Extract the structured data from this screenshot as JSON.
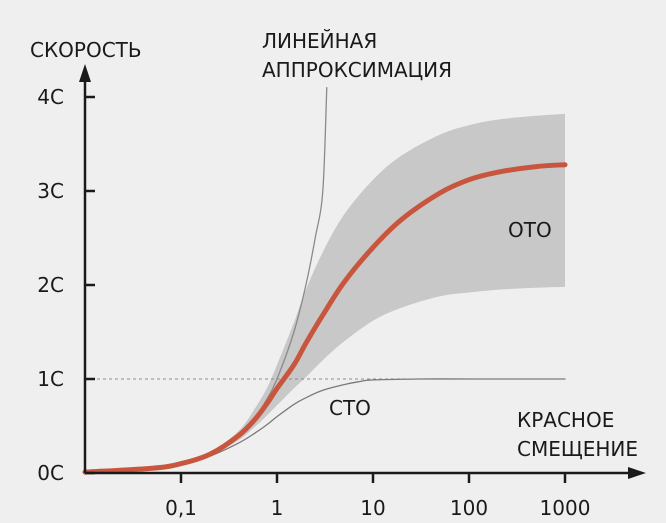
{
  "chart_data": {
    "type": "line",
    "ylabel": "СКОРОСТЬ",
    "xlabel": [
      "КРАСНОЕ",
      "СМЕЩЕНИЕ"
    ],
    "x_scale": "log",
    "xlim": [
      0.01,
      1000
    ],
    "ylim": [
      0,
      4
    ],
    "x_ticks": [
      0.1,
      1,
      10,
      100,
      1000
    ],
    "x_tick_labels": [
      "0,1",
      "1",
      "10",
      "100",
      "1000"
    ],
    "y_ticks": [
      0,
      1,
      2,
      3,
      4
    ],
    "y_tick_labels": [
      "0С",
      "1С",
      "2С",
      "3С",
      "4С"
    ],
    "reference_line": {
      "y": 1,
      "style": "dashed"
    },
    "series": [
      {
        "name": "ЛИНЕЙНАЯ АППРОКСИМАЦИЯ",
        "label_lines": [
          "ЛИНЕЙНАЯ",
          "АППРОКСИМАЦИЯ"
        ],
        "color": "#8a8a8a",
        "x": [
          0.01,
          0.05,
          0.1,
          0.2,
          0.4,
          0.6,
          0.8,
          1,
          1.5,
          2,
          2.5,
          3,
          3.3
        ],
        "y": [
          0.01,
          0.05,
          0.1,
          0.2,
          0.4,
          0.6,
          0.8,
          1.0,
          1.5,
          2.0,
          2.5,
          3.0,
          4.1
        ]
      },
      {
        "name": "СТО",
        "color": "#7a7a7a",
        "x": [
          0.01,
          0.05,
          0.1,
          0.2,
          0.4,
          0.6,
          0.8,
          1,
          1.5,
          2,
          3,
          5,
          7,
          10,
          30,
          100,
          1000
        ],
        "y": [
          0.01,
          0.05,
          0.1,
          0.18,
          0.32,
          0.43,
          0.52,
          0.6,
          0.73,
          0.8,
          0.88,
          0.94,
          0.97,
          0.99,
          1.0,
          1.0,
          1.0
        ]
      },
      {
        "name": "ОТО",
        "color": "#c8563f",
        "x": [
          0.01,
          0.05,
          0.1,
          0.2,
          0.4,
          0.6,
          0.8,
          1,
          1.5,
          2,
          3,
          5,
          10,
          20,
          50,
          100,
          200,
          500,
          1000
        ],
        "y": [
          0.01,
          0.05,
          0.1,
          0.2,
          0.4,
          0.58,
          0.75,
          0.9,
          1.15,
          1.38,
          1.68,
          2.03,
          2.4,
          2.7,
          2.98,
          3.12,
          3.2,
          3.26,
          3.28
        ]
      }
    ],
    "band": {
      "color": "#c8c8c8",
      "x": [
        0.01,
        0.05,
        0.1,
        0.2,
        0.4,
        0.6,
        0.8,
        1,
        1.5,
        2,
        3,
        5,
        10,
        20,
        50,
        100,
        200,
        500,
        1000
      ],
      "upper": [
        0.01,
        0.05,
        0.1,
        0.22,
        0.45,
        0.7,
        0.92,
        1.15,
        1.6,
        1.95,
        2.35,
        2.75,
        3.12,
        3.38,
        3.6,
        3.7,
        3.76,
        3.8,
        3.82
      ],
      "lower": [
        0.01,
        0.05,
        0.1,
        0.18,
        0.35,
        0.5,
        0.62,
        0.72,
        0.9,
        1.02,
        1.2,
        1.4,
        1.62,
        1.76,
        1.88,
        1.92,
        1.95,
        1.97,
        1.98
      ]
    }
  }
}
